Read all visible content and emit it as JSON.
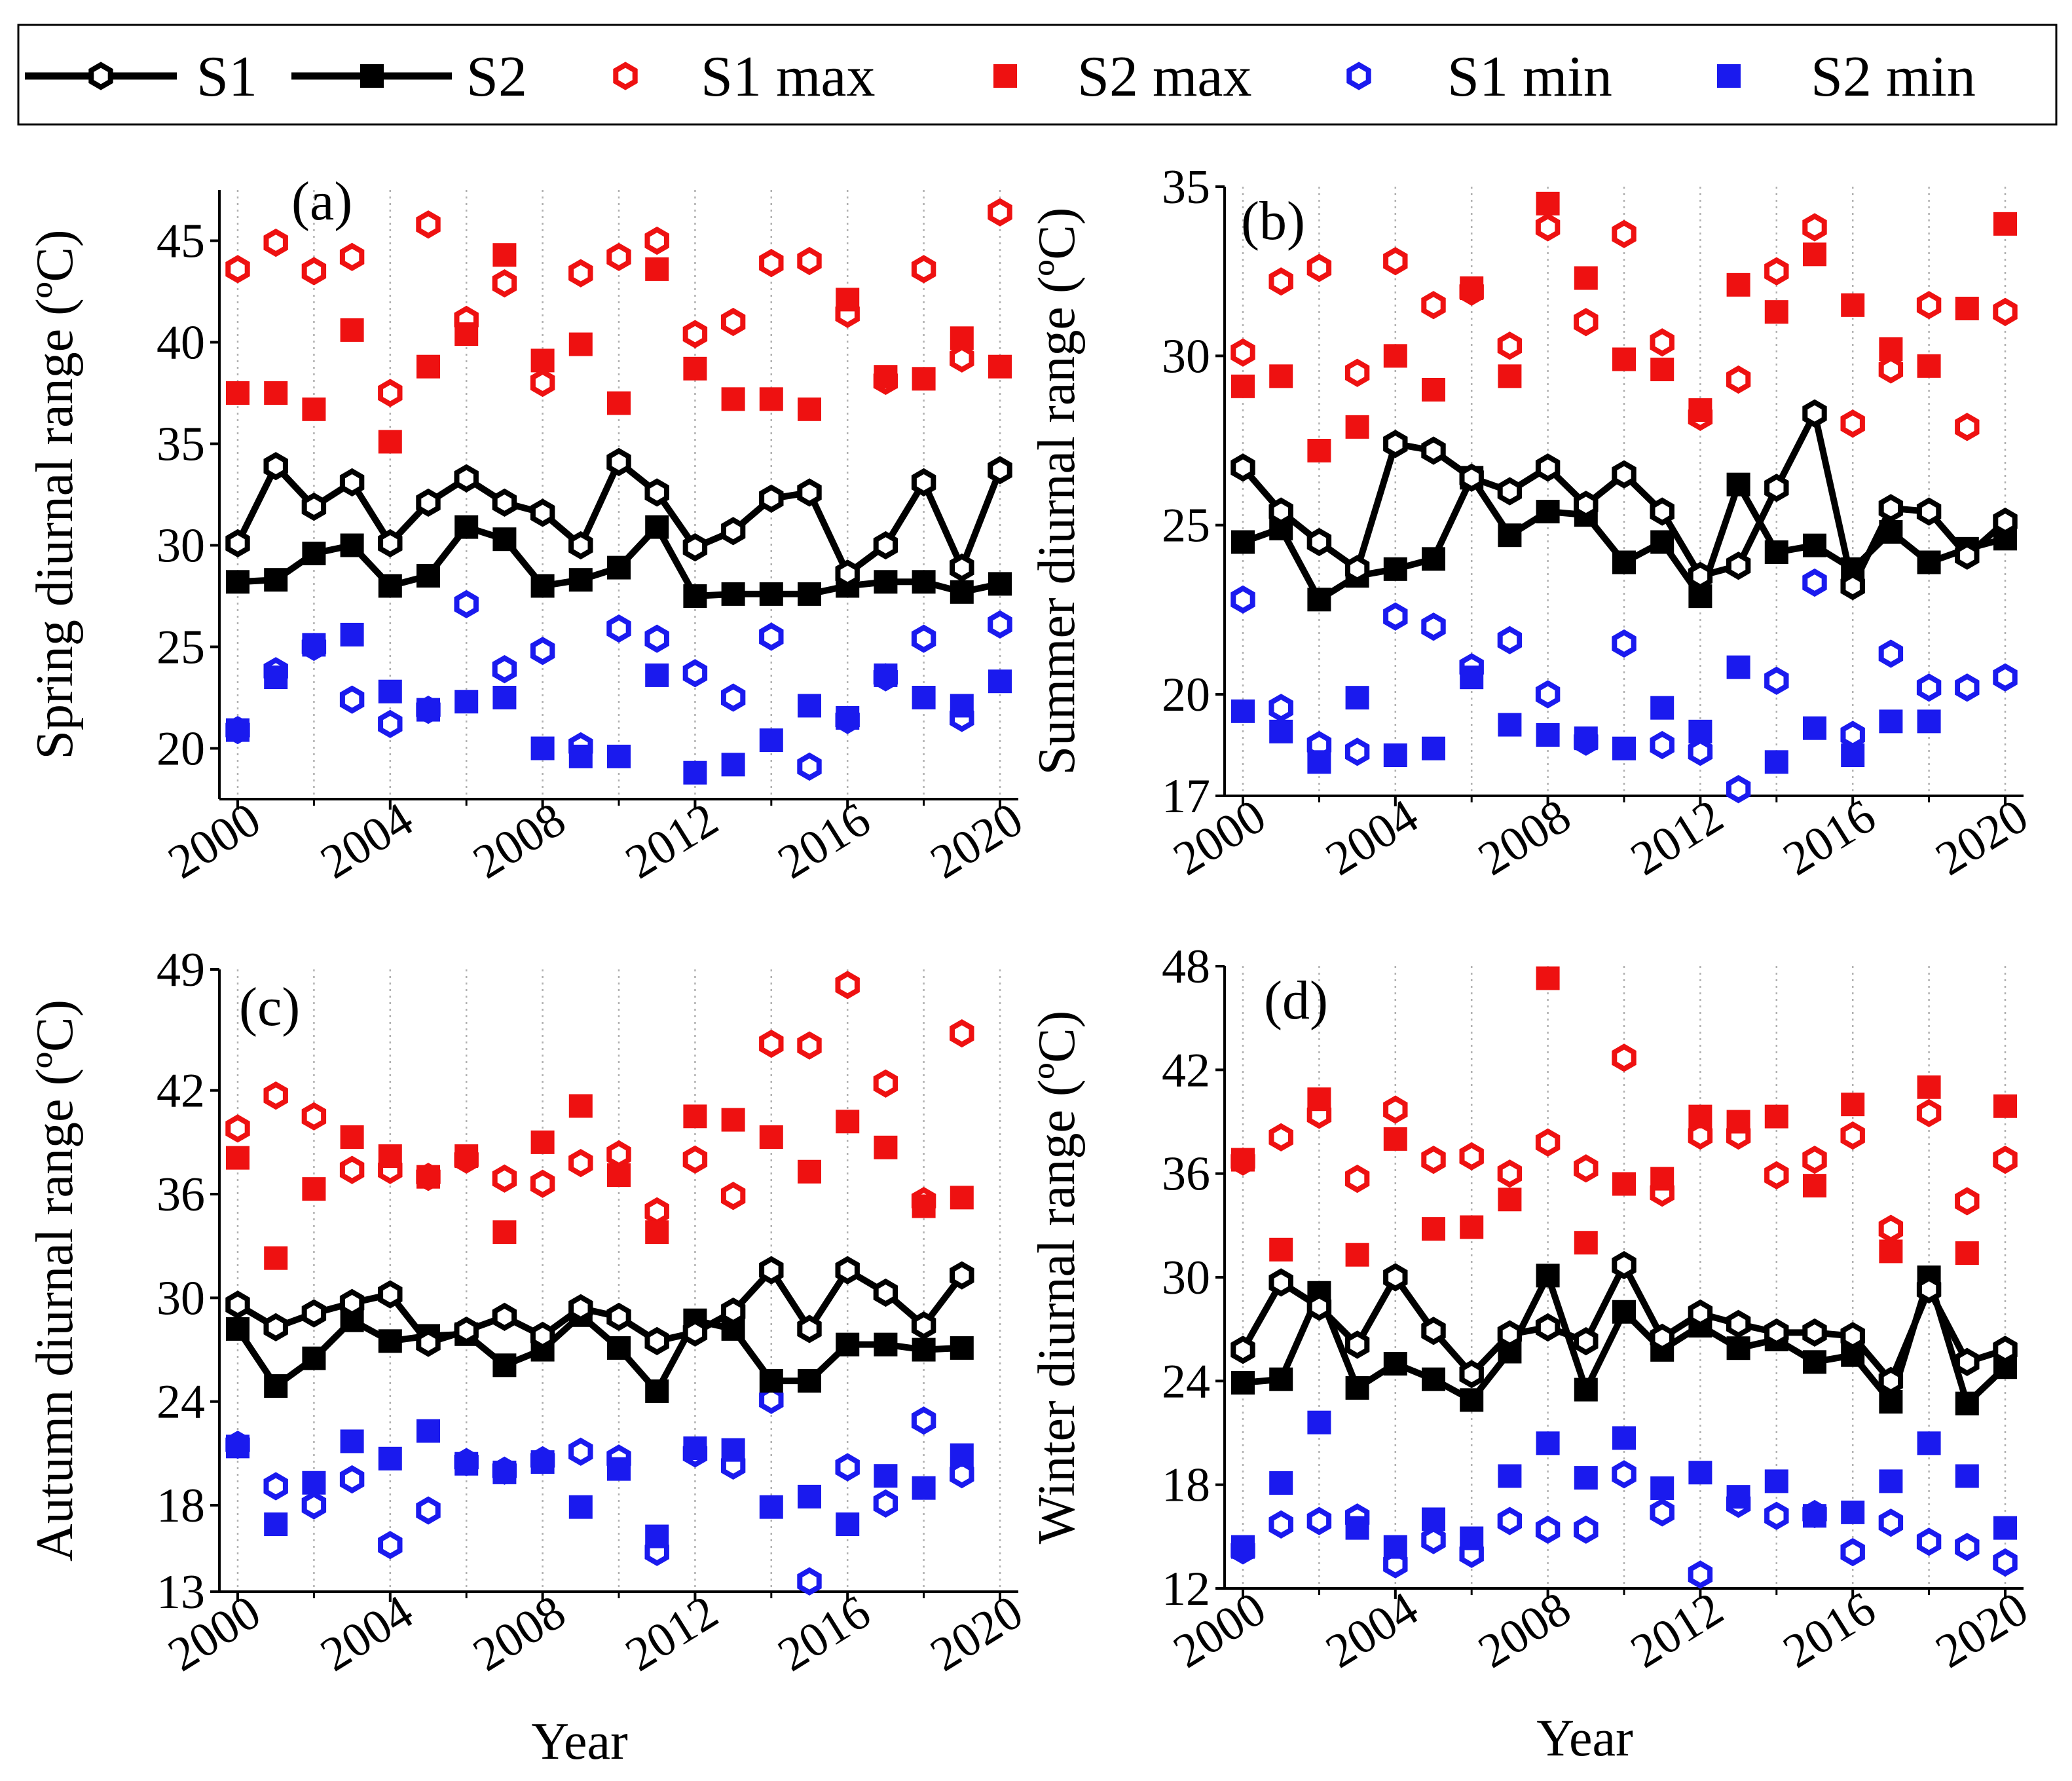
{
  "legend": {
    "items": [
      {
        "label": "S1",
        "kind": "line-hex"
      },
      {
        "label": "S2",
        "kind": "line-square"
      },
      {
        "label": "S1 max",
        "kind": "hex",
        "color": "#ee1111"
      },
      {
        "label": "S2 max",
        "kind": "square",
        "color": "#ee1111"
      },
      {
        "label": "S1 min",
        "kind": "hex",
        "color": "#1a1aee"
      },
      {
        "label": "S2 min",
        "kind": "square",
        "color": "#1a1aee"
      }
    ]
  },
  "colors": {
    "line": "#000000",
    "max": "#ee1111",
    "min": "#1a1aee",
    "grid": "#b0b0b0"
  },
  "chart_data": [
    {
      "type": "line",
      "panel_label": "(a)",
      "title": "",
      "xlabel": "",
      "ylabel": "Spring diurnal range (ºC)",
      "xlim": [
        2000,
        2020
      ],
      "ylim": [
        17.5,
        47.5
      ],
      "xticks": [
        2000,
        2004,
        2008,
        2012,
        2016,
        2020
      ],
      "yticks": [
        20,
        25,
        30,
        35,
        40,
        45
      ],
      "x": [
        2000,
        2001,
        2002,
        2003,
        2004,
        2005,
        2006,
        2007,
        2008,
        2009,
        2010,
        2011,
        2012,
        2013,
        2014,
        2015,
        2016,
        2017,
        2018,
        2019,
        2020
      ],
      "series": [
        {
          "name": "S1",
          "values": [
            30.1,
            33.9,
            31.9,
            33.1,
            30.1,
            32.1,
            33.3,
            32.1,
            31.6,
            30.0,
            34.1,
            32.6,
            29.9,
            30.7,
            32.3,
            32.6,
            28.6,
            30.0,
            33.1,
            28.9,
            33.7
          ]
        },
        {
          "name": "S2",
          "values": [
            28.2,
            28.3,
            29.6,
            30.0,
            28.0,
            28.5,
            30.9,
            30.3,
            28.0,
            28.3,
            28.9,
            30.9,
            27.5,
            27.6,
            27.6,
            27.6,
            28.0,
            28.2,
            28.2,
            27.7,
            28.1
          ]
        },
        {
          "name": "S1 max",
          "values": [
            43.6,
            44.9,
            43.5,
            44.2,
            37.5,
            45.8,
            41.1,
            42.9,
            38.0,
            43.4,
            44.2,
            45.0,
            40.4,
            41.0,
            43.9,
            44.0,
            41.4,
            38.1,
            43.6,
            39.2,
            46.4
          ]
        },
        {
          "name": "S2 max",
          "values": [
            37.5,
            37.5,
            36.7,
            40.6,
            35.1,
            38.8,
            40.4,
            44.3,
            39.1,
            39.9,
            37.0,
            43.6,
            38.7,
            37.2,
            37.2,
            36.7,
            42.1,
            38.3,
            38.2,
            40.2,
            38.8
          ]
        },
        {
          "name": "S1 min",
          "values": [
            20.9,
            23.8,
            25.0,
            22.4,
            21.2,
            21.9,
            27.1,
            23.9,
            24.8,
            20.1,
            25.9,
            25.4,
            23.7,
            22.5,
            25.5,
            19.1,
            21.4,
            23.5,
            25.4,
            21.5,
            26.1
          ]
        },
        {
          "name": "S2 min",
          "values": [
            20.9,
            23.5,
            25.1,
            25.6,
            22.8,
            21.9,
            22.3,
            22.5,
            20.0,
            19.6,
            19.6,
            23.6,
            18.8,
            19.2,
            20.4,
            22.1,
            21.5,
            23.6,
            22.5,
            22.1,
            23.3
          ]
        }
      ]
    },
    {
      "type": "line",
      "panel_label": "(b)",
      "title": "",
      "xlabel": "",
      "ylabel": "Summer diurnal range (ºC)",
      "xlim": [
        2000,
        2020
      ],
      "ylim": [
        17,
        35
      ],
      "xticks": [
        2000,
        2004,
        2008,
        2012,
        2016,
        2020
      ],
      "yticks": [
        17,
        20,
        25,
        30,
        35
      ],
      "x": [
        2000,
        2001,
        2002,
        2003,
        2004,
        2005,
        2006,
        2007,
        2008,
        2009,
        2010,
        2011,
        2012,
        2013,
        2014,
        2015,
        2016,
        2017,
        2018,
        2019,
        2020
      ],
      "series": [
        {
          "name": "S1",
          "values": [
            26.7,
            25.4,
            24.5,
            23.7,
            27.4,
            27.2,
            26.4,
            26.0,
            26.7,
            25.6,
            26.5,
            25.4,
            23.5,
            23.8,
            26.1,
            28.3,
            23.2,
            25.5,
            25.4,
            24.1,
            25.1
          ]
        },
        {
          "name": "S2",
          "values": [
            24.5,
            24.9,
            22.8,
            23.5,
            23.7,
            24.0,
            26.4,
            24.7,
            25.4,
            25.3,
            23.9,
            24.5,
            22.9,
            26.2,
            24.2,
            24.4,
            23.7,
            24.8,
            23.9,
            24.3,
            24.6
          ]
        },
        {
          "name": "S1 max",
          "values": [
            30.1,
            32.2,
            32.6,
            29.5,
            32.8,
            31.5,
            31.9,
            30.3,
            33.8,
            31.0,
            33.6,
            30.4,
            28.2,
            29.3,
            32.5,
            33.8,
            28.0,
            29.6,
            31.5,
            27.9,
            31.3
          ]
        },
        {
          "name": "S2 max",
          "values": [
            29.1,
            29.4,
            27.2,
            27.9,
            30.0,
            29.0,
            32.0,
            29.4,
            34.5,
            32.3,
            29.9,
            29.6,
            28.4,
            32.1,
            31.3,
            33.0,
            31.5,
            30.2,
            29.7,
            31.4,
            33.9
          ]
        },
        {
          "name": "S1 min",
          "values": [
            22.8,
            19.6,
            18.5,
            18.3,
            22.3,
            22.0,
            20.8,
            21.6,
            20.0,
            18.6,
            21.5,
            18.5,
            18.3,
            17.2,
            20.4,
            23.3,
            18.8,
            21.2,
            20.2,
            20.2,
            20.5
          ]
        },
        {
          "name": "S2 min",
          "values": [
            19.5,
            18.9,
            18.0,
            19.9,
            18.2,
            18.4,
            20.5,
            19.1,
            18.8,
            18.7,
            18.4,
            19.6,
            18.9,
            20.8,
            18.0,
            19.0,
            18.2,
            19.2,
            19.2,
            null,
            null
          ]
        }
      ]
    },
    {
      "type": "line",
      "panel_label": "(c)",
      "title": "",
      "xlabel": "Year",
      "ylabel": "Autumn diurnal range (ºC)",
      "xlim": [
        2000,
        2020
      ],
      "ylim": [
        13,
        49
      ],
      "xticks": [
        2000,
        2004,
        2008,
        2012,
        2016,
        2020
      ],
      "yticks": [
        13,
        18,
        24,
        30,
        36,
        42,
        49
      ],
      "x": [
        2000,
        2001,
        2002,
        2003,
        2004,
        2005,
        2006,
        2007,
        2008,
        2009,
        2010,
        2011,
        2012,
        2013,
        2014,
        2015,
        2016,
        2017,
        2018,
        2019
      ],
      "series": [
        {
          "name": "S1",
          "values": [
            29.6,
            28.3,
            29.1,
            29.7,
            30.2,
            27.4,
            28.1,
            28.9,
            27.8,
            29.4,
            28.9,
            27.5,
            28.0,
            29.2,
            31.6,
            28.2,
            31.6,
            30.3,
            28.4,
            31.3
          ]
        },
        {
          "name": "S2",
          "values": [
            28.2,
            24.9,
            26.5,
            28.7,
            27.5,
            27.8,
            27.9,
            26.1,
            27.0,
            29.0,
            27.1,
            24.6,
            28.7,
            28.2,
            25.2,
            25.2,
            27.3,
            27.3,
            27.0,
            27.1
          ]
        },
        {
          "name": "S1 max",
          "values": [
            39.8,
            41.7,
            40.5,
            37.4,
            37.4,
            37.0,
            38.0,
            36.9,
            36.6,
            37.8,
            38.3,
            35.0,
            38.0,
            35.9,
            44.7,
            44.6,
            48.1,
            42.4,
            35.6,
            45.3
          ]
        },
        {
          "name": "S2 max",
          "values": [
            38.1,
            32.3,
            36.3,
            39.3,
            38.2,
            37.0,
            38.2,
            33.8,
            39.0,
            41.1,
            37.1,
            33.8,
            40.5,
            40.3,
            39.3,
            37.3,
            40.2,
            38.7,
            35.3,
            35.8
          ]
        },
        {
          "name": "S1 min",
          "values": [
            21.5,
            19.1,
            18.0,
            19.5,
            15.7,
            17.7,
            20.5,
            20.0,
            20.6,
            21.1,
            20.7,
            15.3,
            21.0,
            20.3,
            24.1,
            13.6,
            20.2,
            18.1,
            22.9,
            19.8
          ]
        },
        {
          "name": "S2 min",
          "values": [
            21.4,
            16.9,
            19.3,
            21.7,
            20.7,
            22.3,
            20.4,
            19.9,
            20.5,
            17.9,
            20.1,
            16.2,
            21.3,
            21.2,
            17.9,
            18.5,
            16.9,
            19.7,
            19.0,
            20.9
          ]
        }
      ]
    },
    {
      "type": "line",
      "panel_label": "(d)",
      "title": "",
      "xlabel": "Year",
      "ylabel": "Winter diurnal range (ºC)",
      "xlim": [
        2000,
        2020
      ],
      "ylim": [
        12,
        48
      ],
      "xticks": [
        2000,
        2004,
        2008,
        2012,
        2016,
        2020
      ],
      "yticks": [
        12,
        18,
        24,
        30,
        36,
        42,
        48
      ],
      "x": [
        2000,
        2001,
        2002,
        2003,
        2004,
        2005,
        2006,
        2007,
        2008,
        2009,
        2010,
        2011,
        2012,
        2013,
        2014,
        2015,
        2016,
        2017,
        2018,
        2019,
        2020
      ],
      "series": [
        {
          "name": "S1",
          "values": [
            25.8,
            29.7,
            28.3,
            26.1,
            30.0,
            26.9,
            24.4,
            26.7,
            27.1,
            26.3,
            30.7,
            26.5,
            27.9,
            27.3,
            26.8,
            26.8,
            26.6,
            24.0,
            29.3,
            25.1,
            25.8
          ]
        },
        {
          "name": "S2",
          "values": [
            23.9,
            24.1,
            29.1,
            23.6,
            25.0,
            24.1,
            22.9,
            25.7,
            30.1,
            23.5,
            28.0,
            25.8,
            27.2,
            25.9,
            26.4,
            25.1,
            25.5,
            22.8,
            30.0,
            22.7,
            24.8
          ]
        },
        {
          "name": "S1 max",
          "values": [
            36.7,
            38.1,
            39.4,
            35.7,
            39.7,
            36.8,
            37.0,
            36.0,
            37.8,
            36.3,
            42.7,
            34.9,
            38.2,
            38.2,
            35.9,
            36.8,
            38.2,
            32.8,
            39.5,
            34.4,
            36.8
          ]
        },
        {
          "name": "S2 max",
          "values": [
            36.8,
            31.6,
            40.3,
            31.3,
            38.0,
            32.8,
            32.9,
            34.5,
            47.3,
            32.0,
            35.4,
            35.7,
            39.3,
            39.0,
            39.3,
            35.3,
            40.0,
            31.5,
            41.0,
            31.4,
            39.9
          ]
        },
        {
          "name": "S1 min",
          "values": [
            14.2,
            15.7,
            15.9,
            16.1,
            13.4,
            14.8,
            14.0,
            15.9,
            15.4,
            15.4,
            18.6,
            16.4,
            12.8,
            16.9,
            16.2,
            16.3,
            14.1,
            15.8,
            14.7,
            14.4,
            13.5
          ]
        },
        {
          "name": "S2 min",
          "values": [
            14.4,
            18.1,
            21.6,
            15.5,
            14.4,
            16.0,
            14.9,
            18.5,
            20.4,
            18.4,
            20.7,
            17.8,
            18.7,
            17.3,
            18.2,
            16.2,
            16.4,
            18.2,
            20.4,
            18.5,
            15.5
          ]
        }
      ]
    }
  ]
}
